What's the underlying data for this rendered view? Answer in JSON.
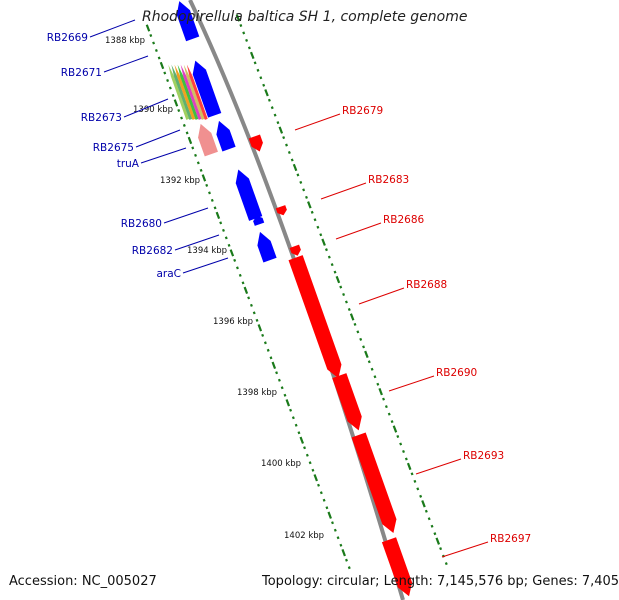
{
  "title": "Rhodopirellula baltica SH 1, complete genome",
  "accession": "Accession: NC_005027",
  "topology": "Topology: circular; Length: 7,145,576 bp; Genes: 7,405",
  "colors": {
    "forward_strand": "#ff0000",
    "reverse_strand": "#0000ff",
    "backbone": "#888888",
    "tick_marks": "#1a7a1a",
    "left_label": "#0000aa",
    "right_label": "#dd0000",
    "pink_gene": "#f09090"
  },
  "kbp_ticks": [
    {
      "label": "1388 kbp"
    },
    {
      "label": "1390 kbp"
    },
    {
      "label": "1392 kbp"
    },
    {
      "label": "1394 kbp"
    },
    {
      "label": "1396 kbp"
    },
    {
      "label": "1398 kbp"
    },
    {
      "label": "1400 kbp"
    },
    {
      "label": "1402 kbp"
    }
  ],
  "left_genes": [
    {
      "label": "RB2669"
    },
    {
      "label": "RB2671"
    },
    {
      "label": "RB2673"
    },
    {
      "label": "RB2675"
    },
    {
      "label": "truA"
    },
    {
      "label": "RB2680"
    },
    {
      "label": "RB2682"
    },
    {
      "label": "araC"
    }
  ],
  "right_genes": [
    {
      "label": "RB2679"
    },
    {
      "label": "RB2683"
    },
    {
      "label": "RB2686"
    },
    {
      "label": "RB2688"
    },
    {
      "label": "RB2690"
    },
    {
      "label": "RB2693"
    },
    {
      "label": "RB2697"
    }
  ]
}
